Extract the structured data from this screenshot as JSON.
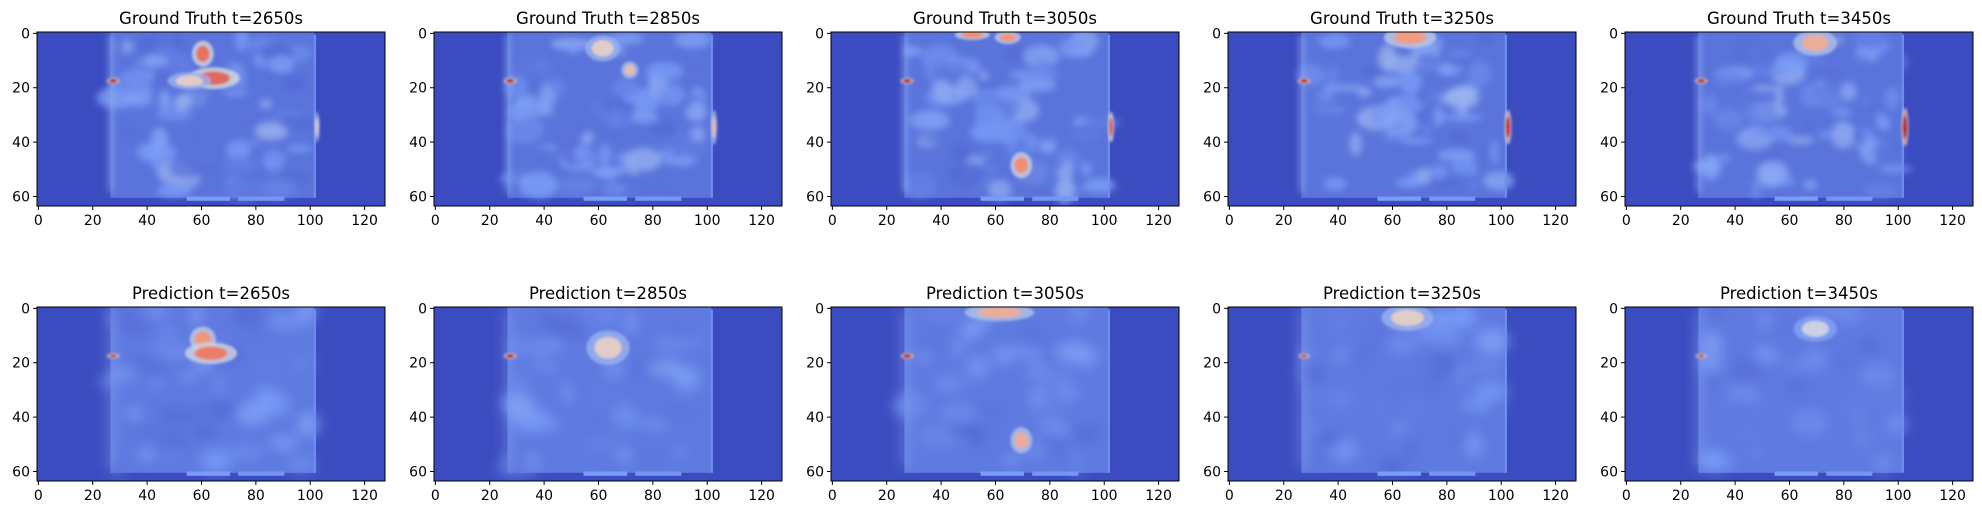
{
  "chart_data": {
    "type": "heatmap",
    "colormap": "coolwarm",
    "image_shape": [
      64,
      128
    ],
    "xlim": [
      0,
      128
    ],
    "ylim": [
      64,
      0
    ],
    "xticks": [
      0,
      20,
      40,
      60,
      80,
      100,
      120
    ],
    "yticks": [
      0,
      20,
      40,
      60
    ],
    "panels": [
      {
        "row": "Ground Truth",
        "t": 2650,
        "title": "Ground Truth t=2650s",
        "hotspots": [
          {
            "x": 61,
            "y": 8,
            "level": 0.8,
            "rx": 2.5,
            "ry": 3
          },
          {
            "x": 65,
            "y": 17,
            "level": 0.82,
            "rx": 6,
            "ry": 2.5
          },
          {
            "x": 56,
            "y": 18,
            "level": 0.55,
            "rx": 5,
            "ry": 2
          },
          {
            "x": 28,
            "y": 18,
            "level": 1.0,
            "rx": 1.5,
            "ry": 0.7
          },
          {
            "x": 103,
            "y": 35,
            "level": 0.55,
            "rx": 0.6,
            "ry": 3.5
          }
        ]
      },
      {
        "row": "Ground Truth",
        "t": 2850,
        "title": "Ground Truth t=2850s",
        "hotspots": [
          {
            "x": 62,
            "y": 6,
            "level": 0.55,
            "rx": 4,
            "ry": 3
          },
          {
            "x": 72,
            "y": 14,
            "level": 0.6,
            "rx": 2,
            "ry": 2
          },
          {
            "x": 28,
            "y": 18,
            "level": 1.0,
            "rx": 1.5,
            "ry": 0.7
          },
          {
            "x": 103,
            "y": 35,
            "level": 0.6,
            "rx": 0.7,
            "ry": 4
          }
        ]
      },
      {
        "row": "Ground Truth",
        "t": 3050,
        "title": "Ground Truth t=3050s",
        "hotspots": [
          {
            "x": 52,
            "y": 1,
            "level": 0.75,
            "rx": 4,
            "ry": 1.2
          },
          {
            "x": 65,
            "y": 2,
            "level": 0.72,
            "rx": 3,
            "ry": 1.5
          },
          {
            "x": 70,
            "y": 49,
            "level": 0.75,
            "rx": 2.5,
            "ry": 3
          },
          {
            "x": 28,
            "y": 18,
            "level": 1.0,
            "rx": 1.5,
            "ry": 0.7
          },
          {
            "x": 103,
            "y": 35,
            "level": 0.85,
            "rx": 0.7,
            "ry": 3.5
          }
        ]
      },
      {
        "row": "Ground Truth",
        "t": 3250,
        "title": "Ground Truth t=3250s",
        "hotspots": [
          {
            "x": 67,
            "y": 2,
            "level": 0.7,
            "rx": 6,
            "ry": 2.5
          },
          {
            "x": 28,
            "y": 18,
            "level": 1.0,
            "rx": 1.5,
            "ry": 0.7
          },
          {
            "x": 103,
            "y": 35,
            "level": 0.95,
            "rx": 0.8,
            "ry": 4
          }
        ]
      },
      {
        "row": "Ground Truth",
        "t": 3450,
        "title": "Ground Truth t=3450s",
        "hotspots": [
          {
            "x": 70,
            "y": 4,
            "level": 0.65,
            "rx": 5,
            "ry": 3
          },
          {
            "x": 28,
            "y": 18,
            "level": 1.0,
            "rx": 1.5,
            "ry": 0.7
          },
          {
            "x": 103,
            "y": 35,
            "level": 1.0,
            "rx": 0.8,
            "ry": 4.5
          }
        ]
      },
      {
        "row": "Prediction",
        "t": 2650,
        "title": "Prediction t=2650s",
        "hotspots": [
          {
            "x": 61,
            "y": 12,
            "level": 0.72,
            "rx": 3,
            "ry": 3
          },
          {
            "x": 64,
            "y": 17,
            "level": 0.78,
            "rx": 6,
            "ry": 2.5
          },
          {
            "x": 28,
            "y": 18,
            "level": 0.9,
            "rx": 1.5,
            "ry": 0.6
          }
        ]
      },
      {
        "row": "Prediction",
        "t": 2850,
        "title": "Prediction t=2850s",
        "hotspots": [
          {
            "x": 64,
            "y": 15,
            "level": 0.55,
            "rx": 5,
            "ry": 4
          },
          {
            "x": 28,
            "y": 18,
            "level": 1.0,
            "rx": 1.5,
            "ry": 0.7
          }
        ]
      },
      {
        "row": "Prediction",
        "t": 3050,
        "title": "Prediction t=3050s",
        "hotspots": [
          {
            "x": 62,
            "y": 2,
            "level": 0.65,
            "rx": 8,
            "ry": 2
          },
          {
            "x": 70,
            "y": 49,
            "level": 0.65,
            "rx": 2.5,
            "ry": 3
          },
          {
            "x": 28,
            "y": 18,
            "level": 1.0,
            "rx": 1.5,
            "ry": 0.7
          }
        ]
      },
      {
        "row": "Prediction",
        "t": 3250,
        "title": "Prediction t=3250s",
        "hotspots": [
          {
            "x": 66,
            "y": 4,
            "level": 0.55,
            "rx": 6,
            "ry": 3
          },
          {
            "x": 28,
            "y": 18,
            "level": 0.9,
            "rx": 1.3,
            "ry": 0.6
          }
        ]
      },
      {
        "row": "Prediction",
        "t": 3450,
        "title": "Prediction t=3450s",
        "hotspots": [
          {
            "x": 70,
            "y": 8,
            "level": 0.45,
            "rx": 5,
            "ry": 3
          },
          {
            "x": 28,
            "y": 18,
            "level": 0.9,
            "rx": 1.3,
            "ry": 0.6
          }
        ]
      }
    ]
  }
}
